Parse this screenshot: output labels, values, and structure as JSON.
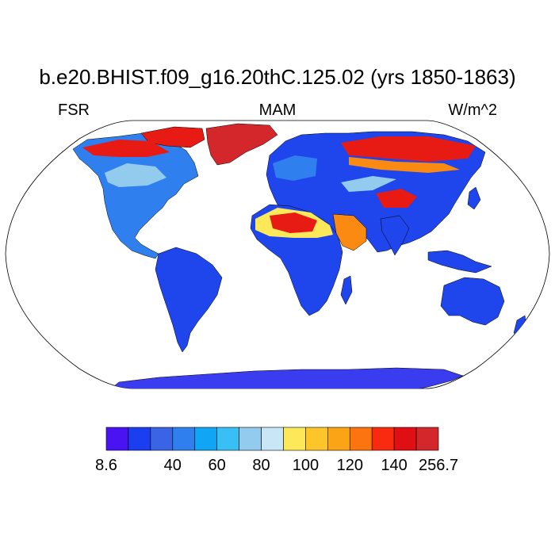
{
  "title": "b.e20.BHIST.f09_g16.20thC.125.02 (yrs 1850-1863)",
  "variable": "FSR",
  "season": "MAM",
  "units": "W/m^2",
  "colorbar": {
    "colors": [
      "#4a13f2",
      "#1a3ef0",
      "#3a64e6",
      "#2f80ee",
      "#10a6f5",
      "#38c0f6",
      "#93cbef",
      "#c9e6f7",
      "#fde85a",
      "#fdc52a",
      "#fba416",
      "#fb740f",
      "#fa2a10",
      "#e00f13",
      "#d4272b"
    ],
    "tick_labels": [
      "8.6",
      "40",
      "60",
      "80",
      "100",
      "120",
      "140",
      "256.7"
    ]
  },
  "map": {
    "projection": "Robinson",
    "land_colors": {
      "antarctica": "#3a3cf0",
      "low": "#1f45ec",
      "mid": "#2f80ee",
      "light": "#93cbef",
      "desert_yellow": "#fde85a",
      "desert_orange": "#fb8a12",
      "high_red": "#e81a14",
      "ice": "#d4272b"
    }
  }
}
